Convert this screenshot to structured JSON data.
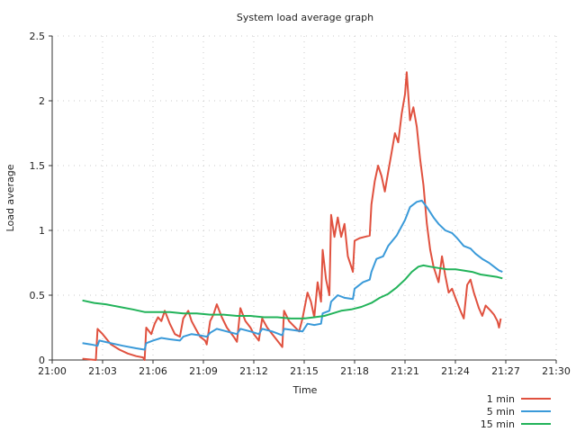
{
  "chart_data": {
    "type": "line",
    "title": "System load average graph",
    "xlabel": "Time",
    "ylabel": "Load average",
    "x_ticks": [
      "21:00",
      "21:03",
      "21:06",
      "21:09",
      "21:12",
      "21:15",
      "21:18",
      "21:21",
      "21:24",
      "21:27",
      "21:30"
    ],
    "x_range_minutes": [
      0,
      30
    ],
    "y_ticks": [
      "0",
      "0.5",
      "1",
      "1.5",
      "2",
      "2.5"
    ],
    "ylim": [
      0,
      2.5
    ],
    "grid": true,
    "legend_position": "bottom-right",
    "series": [
      {
        "name": "1 min",
        "color": "#e0513f",
        "points": [
          [
            1.8,
            0.01
          ],
          [
            2.6,
            0.0
          ],
          [
            2.7,
            0.24
          ],
          [
            3.0,
            0.2
          ],
          [
            3.5,
            0.12
          ],
          [
            4.0,
            0.08
          ],
          [
            4.5,
            0.05
          ],
          [
            5.0,
            0.03
          ],
          [
            5.4,
            0.02
          ],
          [
            5.5,
            0.0
          ],
          [
            5.6,
            0.25
          ],
          [
            5.9,
            0.2
          ],
          [
            6.1,
            0.28
          ],
          [
            6.3,
            0.33
          ],
          [
            6.5,
            0.3
          ],
          [
            6.7,
            0.38
          ],
          [
            7.0,
            0.28
          ],
          [
            7.3,
            0.2
          ],
          [
            7.6,
            0.18
          ],
          [
            7.8,
            0.32
          ],
          [
            8.1,
            0.38
          ],
          [
            8.3,
            0.3
          ],
          [
            8.5,
            0.25
          ],
          [
            8.8,
            0.18
          ],
          [
            9.1,
            0.15
          ],
          [
            9.2,
            0.12
          ],
          [
            9.4,
            0.3
          ],
          [
            9.6,
            0.35
          ],
          [
            9.8,
            0.43
          ],
          [
            10.1,
            0.33
          ],
          [
            10.4,
            0.25
          ],
          [
            10.8,
            0.18
          ],
          [
            11.0,
            0.14
          ],
          [
            11.2,
            0.4
          ],
          [
            11.5,
            0.3
          ],
          [
            11.8,
            0.25
          ],
          [
            12.0,
            0.2
          ],
          [
            12.3,
            0.15
          ],
          [
            12.5,
            0.32
          ],
          [
            12.8,
            0.25
          ],
          [
            13.1,
            0.2
          ],
          [
            13.4,
            0.15
          ],
          [
            13.7,
            0.1
          ],
          [
            13.8,
            0.38
          ],
          [
            14.1,
            0.3
          ],
          [
            14.4,
            0.26
          ],
          [
            14.7,
            0.22
          ],
          [
            14.9,
            0.32
          ],
          [
            15.2,
            0.52
          ],
          [
            15.4,
            0.45
          ],
          [
            15.6,
            0.33
          ],
          [
            15.8,
            0.6
          ],
          [
            16.0,
            0.45
          ],
          [
            16.1,
            0.85
          ],
          [
            16.3,
            0.62
          ],
          [
            16.5,
            0.5
          ],
          [
            16.6,
            1.12
          ],
          [
            16.8,
            0.95
          ],
          [
            17.0,
            1.1
          ],
          [
            17.2,
            0.95
          ],
          [
            17.4,
            1.05
          ],
          [
            17.6,
            0.8
          ],
          [
            17.8,
            0.72
          ],
          [
            17.9,
            0.68
          ],
          [
            18.0,
            0.92
          ],
          [
            18.3,
            0.94
          ],
          [
            18.6,
            0.95
          ],
          [
            18.9,
            0.96
          ],
          [
            19.0,
            1.2
          ],
          [
            19.2,
            1.38
          ],
          [
            19.4,
            1.5
          ],
          [
            19.6,
            1.42
          ],
          [
            19.8,
            1.3
          ],
          [
            20.0,
            1.45
          ],
          [
            20.2,
            1.6
          ],
          [
            20.4,
            1.75
          ],
          [
            20.6,
            1.68
          ],
          [
            20.8,
            1.9
          ],
          [
            21.0,
            2.05
          ],
          [
            21.1,
            2.22
          ],
          [
            21.3,
            1.85
          ],
          [
            21.5,
            1.95
          ],
          [
            21.7,
            1.8
          ],
          [
            21.9,
            1.55
          ],
          [
            22.1,
            1.35
          ],
          [
            22.3,
            1.05
          ],
          [
            22.5,
            0.85
          ],
          [
            22.7,
            0.72
          ],
          [
            23.0,
            0.6
          ],
          [
            23.2,
            0.8
          ],
          [
            23.4,
            0.65
          ],
          [
            23.6,
            0.52
          ],
          [
            23.8,
            0.55
          ],
          [
            24.0,
            0.48
          ],
          [
            24.3,
            0.38
          ],
          [
            24.5,
            0.32
          ],
          [
            24.7,
            0.58
          ],
          [
            24.9,
            0.62
          ],
          [
            25.1,
            0.52
          ],
          [
            25.4,
            0.4
          ],
          [
            25.6,
            0.34
          ],
          [
            25.8,
            0.42
          ],
          [
            26.1,
            0.38
          ],
          [
            26.3,
            0.35
          ],
          [
            26.5,
            0.3
          ],
          [
            26.6,
            0.25
          ],
          [
            26.7,
            0.32
          ]
        ]
      },
      {
        "name": "5 min",
        "color": "#3a9ad9",
        "points": [
          [
            1.8,
            0.13
          ],
          [
            2.3,
            0.12
          ],
          [
            2.7,
            0.11
          ],
          [
            2.8,
            0.15
          ],
          [
            3.5,
            0.13
          ],
          [
            4.2,
            0.11
          ],
          [
            5.0,
            0.09
          ],
          [
            5.5,
            0.08
          ],
          [
            5.6,
            0.13
          ],
          [
            6.0,
            0.15
          ],
          [
            6.5,
            0.17
          ],
          [
            7.0,
            0.16
          ],
          [
            7.6,
            0.15
          ],
          [
            7.8,
            0.18
          ],
          [
            8.3,
            0.2
          ],
          [
            8.8,
            0.19
          ],
          [
            9.2,
            0.18
          ],
          [
            9.4,
            0.21
          ],
          [
            9.8,
            0.24
          ],
          [
            10.4,
            0.22
          ],
          [
            11.0,
            0.2
          ],
          [
            11.2,
            0.24
          ],
          [
            11.8,
            0.22
          ],
          [
            12.3,
            0.2
          ],
          [
            12.5,
            0.24
          ],
          [
            13.1,
            0.22
          ],
          [
            13.7,
            0.19
          ],
          [
            13.8,
            0.24
          ],
          [
            14.4,
            0.23
          ],
          [
            14.9,
            0.22
          ],
          [
            15.2,
            0.28
          ],
          [
            15.6,
            0.27
          ],
          [
            16.0,
            0.28
          ],
          [
            16.1,
            0.36
          ],
          [
            16.5,
            0.38
          ],
          [
            16.6,
            0.45
          ],
          [
            17.0,
            0.5
          ],
          [
            17.4,
            0.48
          ],
          [
            17.9,
            0.47
          ],
          [
            18.0,
            0.55
          ],
          [
            18.5,
            0.6
          ],
          [
            18.9,
            0.62
          ],
          [
            19.0,
            0.68
          ],
          [
            19.3,
            0.78
          ],
          [
            19.7,
            0.8
          ],
          [
            20.0,
            0.88
          ],
          [
            20.5,
            0.96
          ],
          [
            21.0,
            1.08
          ],
          [
            21.3,
            1.18
          ],
          [
            21.7,
            1.22
          ],
          [
            22.0,
            1.23
          ],
          [
            22.3,
            1.18
          ],
          [
            22.7,
            1.1
          ],
          [
            23.0,
            1.05
          ],
          [
            23.4,
            1.0
          ],
          [
            23.8,
            0.98
          ],
          [
            24.1,
            0.94
          ],
          [
            24.5,
            0.88
          ],
          [
            24.9,
            0.86
          ],
          [
            25.2,
            0.82
          ],
          [
            25.6,
            0.78
          ],
          [
            26.0,
            0.75
          ],
          [
            26.3,
            0.72
          ],
          [
            26.6,
            0.69
          ],
          [
            26.8,
            0.68
          ]
        ]
      },
      {
        "name": "15 min",
        "color": "#22b35a",
        "points": [
          [
            1.8,
            0.46
          ],
          [
            2.5,
            0.44
          ],
          [
            3.2,
            0.43
          ],
          [
            4.0,
            0.41
          ],
          [
            4.8,
            0.39
          ],
          [
            5.5,
            0.37
          ],
          [
            6.2,
            0.37
          ],
          [
            7.0,
            0.37
          ],
          [
            7.8,
            0.36
          ],
          [
            8.6,
            0.36
          ],
          [
            9.4,
            0.35
          ],
          [
            10.2,
            0.35
          ],
          [
            11.0,
            0.34
          ],
          [
            11.8,
            0.34
          ],
          [
            12.6,
            0.33
          ],
          [
            13.4,
            0.33
          ],
          [
            14.2,
            0.32
          ],
          [
            15.0,
            0.32
          ],
          [
            15.6,
            0.33
          ],
          [
            16.2,
            0.34
          ],
          [
            16.7,
            0.36
          ],
          [
            17.2,
            0.38
          ],
          [
            17.8,
            0.39
          ],
          [
            18.4,
            0.41
          ],
          [
            19.0,
            0.44
          ],
          [
            19.5,
            0.48
          ],
          [
            20.0,
            0.51
          ],
          [
            20.5,
            0.56
          ],
          [
            21.0,
            0.62
          ],
          [
            21.4,
            0.68
          ],
          [
            21.8,
            0.72
          ],
          [
            22.1,
            0.73
          ],
          [
            22.5,
            0.72
          ],
          [
            23.0,
            0.71
          ],
          [
            23.5,
            0.7
          ],
          [
            24.0,
            0.7
          ],
          [
            24.5,
            0.69
          ],
          [
            25.0,
            0.68
          ],
          [
            25.5,
            0.66
          ],
          [
            26.0,
            0.65
          ],
          [
            26.5,
            0.64
          ],
          [
            26.8,
            0.63
          ]
        ]
      }
    ]
  }
}
